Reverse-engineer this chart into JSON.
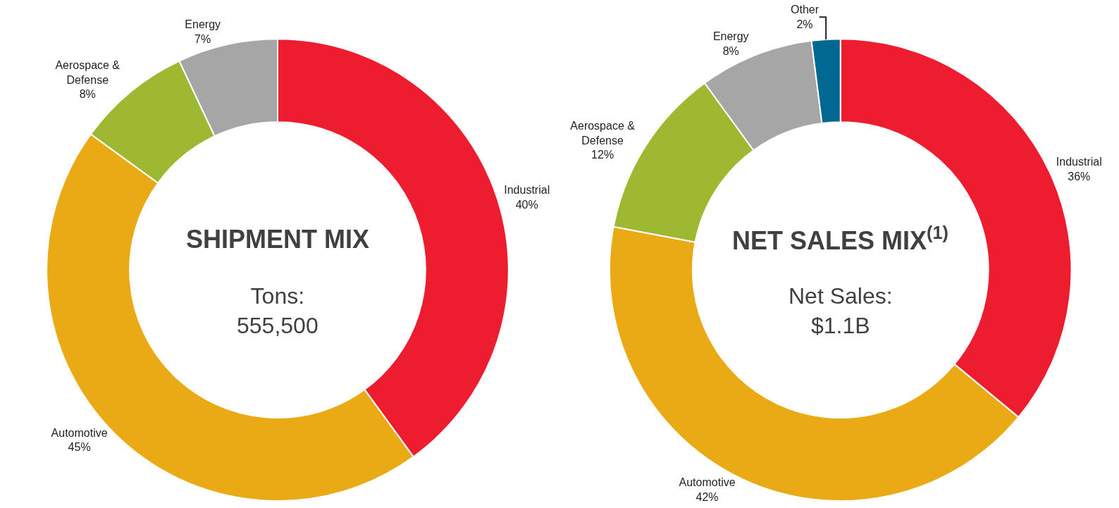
{
  "chart_data": [
    {
      "type": "donut",
      "title": "SHIPMENT MIX",
      "subtitle": "Tons:\n555,500",
      "categories": [
        "Industrial",
        "Automotive",
        "Aerospace &\nDefense",
        "Energy"
      ],
      "values": [
        40,
        45,
        8,
        7
      ],
      "value_labels": [
        "40%",
        "45%",
        "8%",
        "7%"
      ],
      "colors": [
        "#ed1c2e",
        "#eaaa16",
        "#9eb832",
        "#a6a6a6"
      ]
    },
    {
      "type": "donut",
      "title": "NET SALES MIX$^{(1)}$",
      "subtitle": "Net Sales:\n$1.1B",
      "categories": [
        "Industrial",
        "Automotive",
        "Aerospace &\nDefense",
        "Energy",
        "Other"
      ],
      "values": [
        36,
        42,
        12,
        8,
        2
      ],
      "value_labels": [
        "36%",
        "42%",
        "12%",
        "8%",
        "2%"
      ],
      "colors": [
        "#ed1c2e",
        "#eaaa16",
        "#9eb832",
        "#a6a6a6",
        "#006891"
      ]
    }
  ]
}
